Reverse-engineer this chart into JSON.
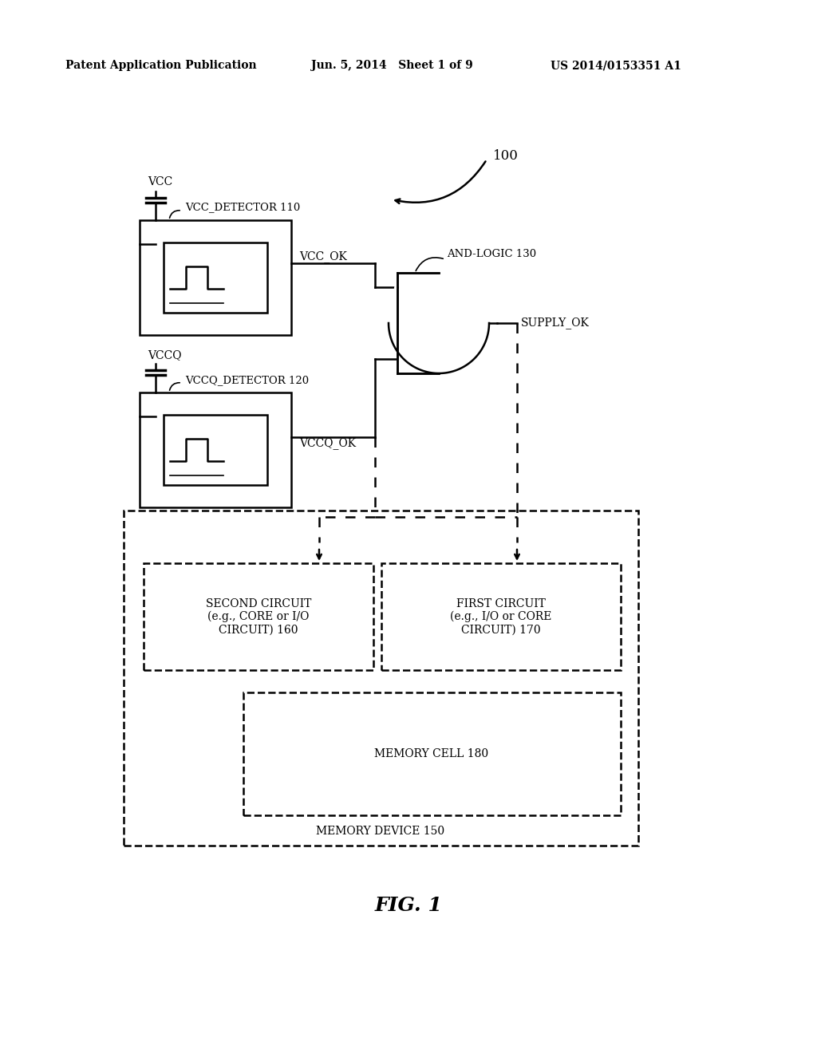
{
  "bg_color": "#ffffff",
  "header_left": "Patent Application Publication",
  "header_mid": "Jun. 5, 2014   Sheet 1 of 9",
  "header_right": "US 2014/0153351 A1",
  "fig_label": "FIG. 1",
  "label_100": "100",
  "label_vcc": "VCC",
  "label_vccq": "VCCQ",
  "label_vcc_detector": "VCC_DETECTOR 110",
  "label_vccq_detector": "VCCQ_DETECTOR 120",
  "label_and_logic": "AND-LOGIC 130",
  "label_vcc_ok": "VCC_OK",
  "label_vccq_ok": "VCCQ_OK",
  "label_supply_ok": "SUPPLY_OK",
  "label_second_circuit": "SECOND CIRCUIT\n(e.g., CORE or I/O\nCIRCUIT) 160",
  "label_first_circuit": "FIRST CIRCUIT\n(e.g., I/O or CORE\nCIRCUIT) 170",
  "label_memory_cell": "MEMORY CELL 180",
  "label_memory_device": "MEMORY DEVICE 150"
}
